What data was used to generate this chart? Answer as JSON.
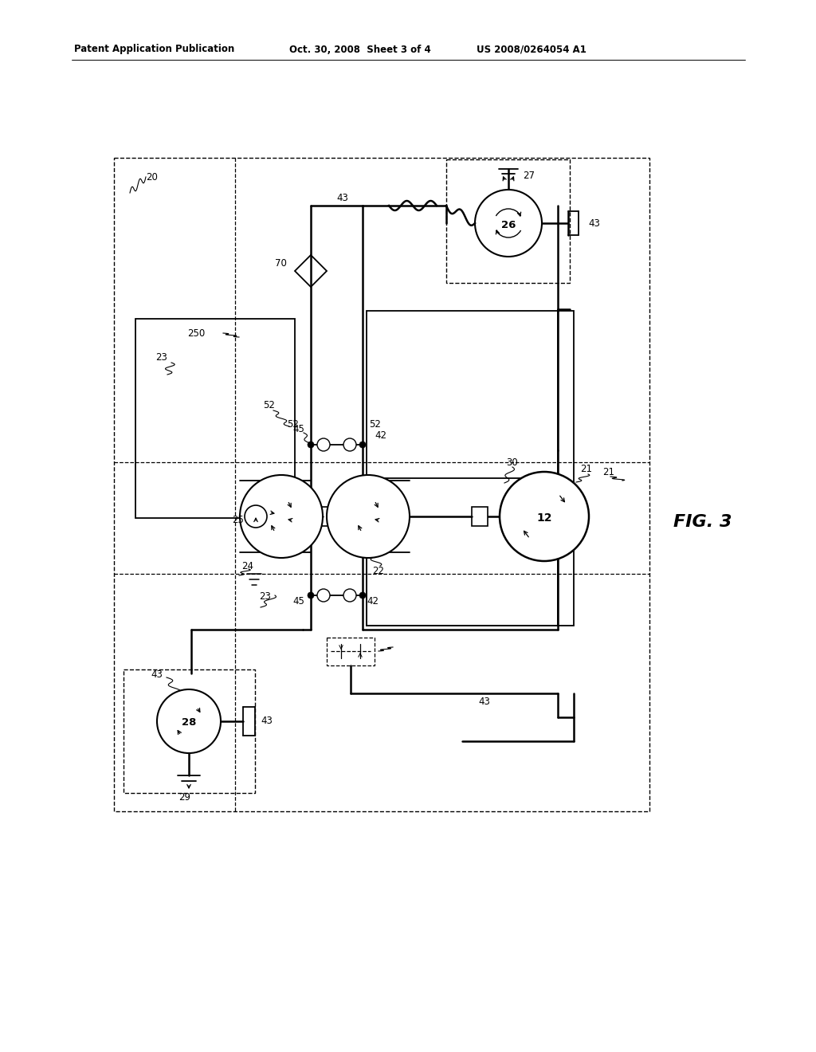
{
  "bg_color": "#ffffff",
  "header_left": "Patent Application Publication",
  "header_mid": "Oct. 30, 2008  Sheet 3 of 4",
  "header_right": "US 2008/0264054 A1",
  "fig_label": "FIG. 3"
}
